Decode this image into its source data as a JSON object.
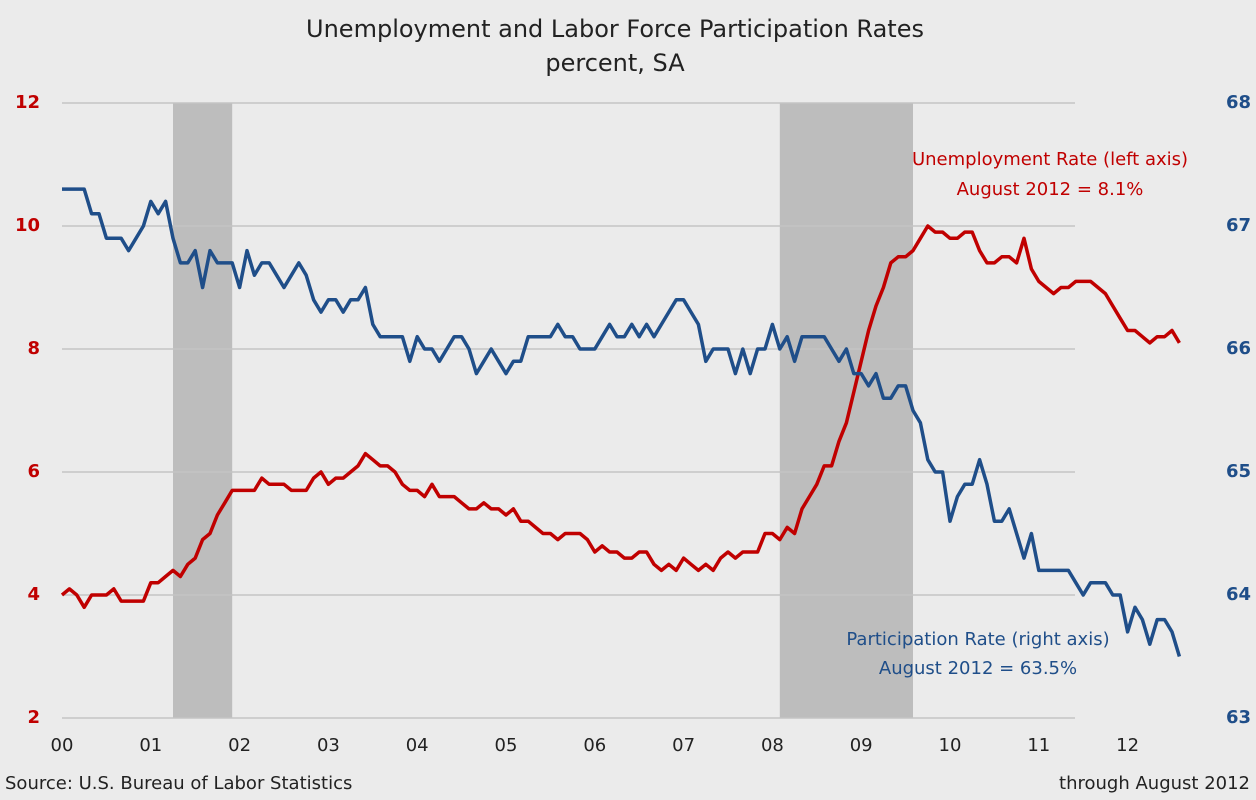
{
  "chart_data": {
    "type": "line",
    "title": "Unemployment and Labor Force Participation Rates",
    "subtitle": "percent, SA",
    "source": "Source: U.S. Bureau of Labor Statistics",
    "note": "through August 2012",
    "categories": [
      "00",
      null,
      null,
      null,
      null,
      null,
      null,
      null,
      null,
      null,
      null,
      null,
      "01",
      null,
      null,
      null,
      null,
      null,
      null,
      null,
      null,
      null,
      null,
      null,
      "02",
      null,
      null,
      null,
      null,
      null,
      null,
      null,
      null,
      null,
      null,
      null,
      "03",
      null,
      null,
      null,
      null,
      null,
      null,
      null,
      null,
      null,
      null,
      null,
      "04",
      null,
      null,
      null,
      null,
      null,
      null,
      null,
      null,
      null,
      null,
      null,
      "05",
      null,
      null,
      null,
      null,
      null,
      null,
      null,
      null,
      null,
      null,
      null,
      "06",
      null,
      null,
      null,
      null,
      null,
      null,
      null,
      null,
      null,
      null,
      null,
      "07",
      null,
      null,
      null,
      null,
      null,
      null,
      null,
      null,
      null,
      null,
      null,
      "08",
      null,
      null,
      null,
      null,
      null,
      null,
      null,
      null,
      null,
      null,
      null,
      "09",
      null,
      null,
      null,
      null,
      null,
      null,
      null,
      null,
      null,
      null,
      null,
      "10",
      null,
      null,
      null,
      null,
      null,
      null,
      null,
      null,
      null,
      null,
      null,
      "11",
      null,
      null,
      null,
      null,
      null,
      null,
      null,
      null,
      null,
      null,
      null,
      "12",
      null,
      null,
      null,
      null,
      null,
      null,
      null
    ],
    "recessions": [
      [
        15,
        23
      ],
      [
        97,
        115
      ]
    ],
    "series": [
      {
        "name": "Unemployment Rate (left axis)",
        "color": "#c00000",
        "axis": "y",
        "annotation": "August 2012 = 8.1%",
        "values": [
          4.0,
          4.1,
          4.0,
          3.8,
          4.0,
          4.0,
          4.0,
          4.1,
          3.9,
          3.9,
          3.9,
          3.9,
          4.2,
          4.2,
          4.3,
          4.4,
          4.3,
          4.5,
          4.6,
          4.9,
          5.0,
          5.3,
          5.5,
          5.7,
          5.7,
          5.7,
          5.7,
          5.9,
          5.8,
          5.8,
          5.8,
          5.7,
          5.7,
          5.7,
          5.9,
          6.0,
          5.8,
          5.9,
          5.9,
          6.0,
          6.1,
          6.3,
          6.2,
          6.1,
          6.1,
          6.0,
          5.8,
          5.7,
          5.7,
          5.6,
          5.8,
          5.6,
          5.6,
          5.6,
          5.5,
          5.4,
          5.4,
          5.5,
          5.4,
          5.4,
          5.3,
          5.4,
          5.2,
          5.2,
          5.1,
          5.0,
          5.0,
          4.9,
          5.0,
          5.0,
          5.0,
          4.9,
          4.7,
          4.8,
          4.7,
          4.7,
          4.6,
          4.6,
          4.7,
          4.7,
          4.5,
          4.4,
          4.5,
          4.4,
          4.6,
          4.5,
          4.4,
          4.5,
          4.4,
          4.6,
          4.7,
          4.6,
          4.7,
          4.7,
          4.7,
          5.0,
          5.0,
          4.9,
          5.1,
          5.0,
          5.4,
          5.6,
          5.8,
          6.1,
          6.1,
          6.5,
          6.8,
          7.3,
          7.8,
          8.3,
          8.7,
          9.0,
          9.4,
          9.5,
          9.5,
          9.6,
          9.8,
          10.0,
          9.9,
          9.9,
          9.8,
          9.8,
          9.9,
          9.9,
          9.6,
          9.4,
          9.4,
          9.5,
          9.5,
          9.4,
          9.8,
          9.3,
          9.1,
          9.0,
          8.9,
          9.0,
          9.0,
          9.1,
          9.1,
          9.1,
          9.0,
          8.9,
          8.7,
          8.5,
          8.3,
          8.3,
          8.2,
          8.1,
          8.2,
          8.2,
          8.3,
          8.1
        ]
      },
      {
        "name": "Participation Rate (right axis)",
        "color": "#1f4e89",
        "axis": "y2",
        "annotation": "August 2012 = 63.5%",
        "values": [
          67.3,
          67.3,
          67.3,
          67.3,
          67.1,
          67.1,
          66.9,
          66.9,
          66.9,
          66.8,
          66.9,
          67.0,
          67.2,
          67.1,
          67.2,
          66.9,
          66.7,
          66.7,
          66.8,
          66.5,
          66.8,
          66.7,
          66.7,
          66.7,
          66.5,
          66.8,
          66.6,
          66.7,
          66.7,
          66.6,
          66.5,
          66.6,
          66.7,
          66.6,
          66.4,
          66.3,
          66.4,
          66.4,
          66.3,
          66.4,
          66.4,
          66.5,
          66.2,
          66.1,
          66.1,
          66.1,
          66.1,
          65.9,
          66.1,
          66.0,
          66.0,
          65.9,
          66.0,
          66.1,
          66.1,
          66.0,
          65.8,
          65.9,
          66.0,
          65.9,
          65.8,
          65.9,
          65.9,
          66.1,
          66.1,
          66.1,
          66.1,
          66.2,
          66.1,
          66.1,
          66.0,
          66.0,
          66.0,
          66.1,
          66.2,
          66.1,
          66.1,
          66.2,
          66.1,
          66.2,
          66.1,
          66.2,
          66.3,
          66.4,
          66.4,
          66.3,
          66.2,
          65.9,
          66.0,
          66.0,
          66.0,
          65.8,
          66.0,
          65.8,
          66.0,
          66.0,
          66.2,
          66.0,
          66.1,
          65.9,
          66.1,
          66.1,
          66.1,
          66.1,
          66.0,
          65.9,
          66.0,
          65.8,
          65.8,
          65.7,
          65.8,
          65.6,
          65.6,
          65.7,
          65.7,
          65.5,
          65.4,
          65.1,
          65.0,
          65.0,
          64.6,
          64.8,
          64.9,
          64.9,
          65.1,
          64.9,
          64.6,
          64.6,
          64.7,
          64.5,
          64.3,
          64.5,
          64.2,
          64.2,
          64.2,
          64.2,
          64.2,
          64.1,
          64.0,
          64.1,
          64.1,
          64.1,
          64.0,
          64.0,
          63.7,
          63.9,
          63.8,
          63.6,
          63.8,
          63.8,
          63.7,
          63.5
        ]
      }
    ],
    "ylim": [
      2,
      12
    ],
    "yticks": [
      2,
      4,
      6,
      8,
      10,
      12
    ],
    "y2lim": [
      63,
      68
    ],
    "y2ticks": [
      63,
      64,
      65,
      66,
      67,
      68
    ],
    "grid": true
  }
}
